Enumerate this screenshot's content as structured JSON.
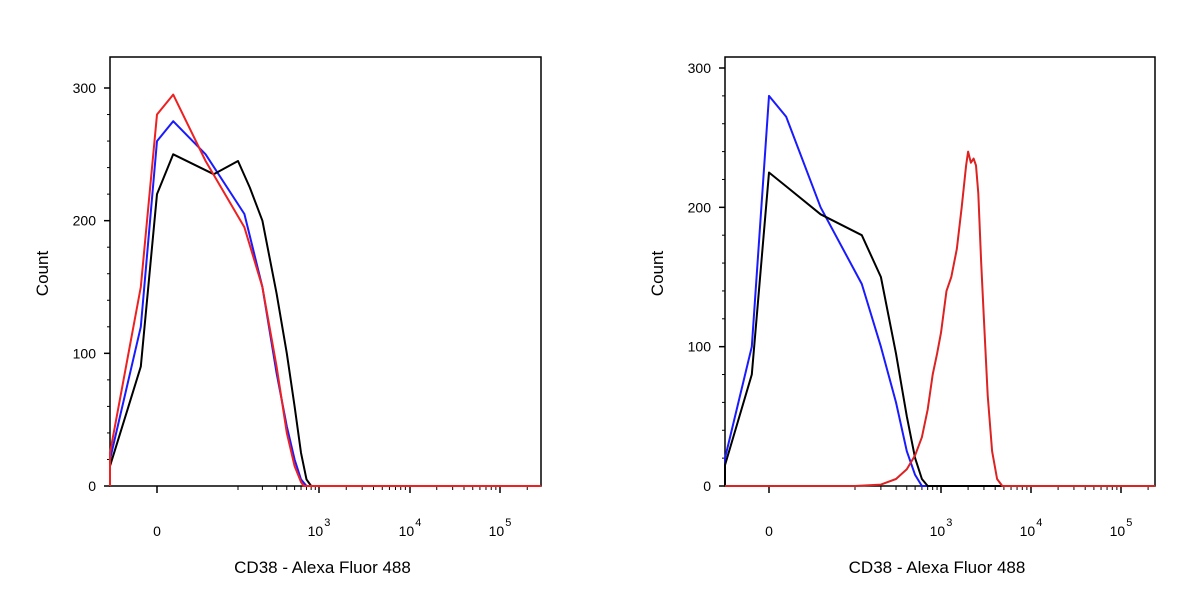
{
  "chart_data": [
    {
      "type": "line",
      "panel": "left",
      "xlabel": "CD38 - Alexa Fluor 488",
      "ylabel": "Count",
      "x_scale": "biexponential",
      "ylim": [
        0,
        300
      ],
      "y_ticks": [
        "0",
        "100",
        "200",
        "300"
      ],
      "x_ticks": [
        {
          "base": "0",
          "exp": ""
        },
        {
          "base": "10",
          "exp": "3"
        },
        {
          "base": "10",
          "exp": "4"
        },
        {
          "base": "10",
          "exp": "5"
        }
      ],
      "grid": false,
      "series": [
        {
          "color": "#1a1aff",
          "points": [
            [
              -400,
              0
            ],
            [
              -150,
              3
            ],
            [
              -60,
              20
            ],
            [
              -20,
              120
            ],
            [
              0,
              260
            ],
            [
              20,
              275
            ],
            [
              60,
              250
            ],
            [
              120,
              205
            ],
            [
              200,
              150
            ],
            [
              300,
              85
            ],
            [
              400,
              45
            ],
            [
              500,
              20
            ],
            [
              600,
              5
            ],
            [
              700,
              0
            ],
            [
              100000,
              0
            ],
            [
              300000,
              0
            ]
          ]
        },
        {
          "color": "#000000",
          "points": [
            [
              -400,
              0
            ],
            [
              -150,
              2
            ],
            [
              -60,
              15
            ],
            [
              -20,
              90
            ],
            [
              0,
              220
            ],
            [
              20,
              250
            ],
            [
              70,
              235
            ],
            [
              100,
              245
            ],
            [
              140,
              225
            ],
            [
              200,
              200
            ],
            [
              300,
              145
            ],
            [
              400,
              100
            ],
            [
              500,
              60
            ],
            [
              600,
              25
            ],
            [
              700,
              5
            ],
            [
              800,
              0
            ],
            [
              100000,
              0
            ],
            [
              300000,
              0
            ]
          ]
        },
        {
          "color": "#ee2020",
          "points": [
            [
              -400,
              0
            ],
            [
              -150,
              3
            ],
            [
              -60,
              25
            ],
            [
              -20,
              150
            ],
            [
              0,
              280
            ],
            [
              20,
              295
            ],
            [
              60,
              245
            ],
            [
              120,
              195
            ],
            [
              200,
              150
            ],
            [
              300,
              90
            ],
            [
              400,
              40
            ],
            [
              500,
              15
            ],
            [
              600,
              3
            ],
            [
              650,
              0
            ],
            [
              100000,
              0
            ],
            [
              300000,
              0
            ]
          ]
        }
      ]
    },
    {
      "type": "line",
      "panel": "right",
      "xlabel": "CD38 - Alexa Fluor 488",
      "ylabel": "Count",
      "x_scale": "biexponential",
      "ylim": [
        0,
        300
      ],
      "y_ticks": [
        "0",
        "100",
        "200",
        "300"
      ],
      "x_ticks": [
        {
          "base": "0",
          "exp": ""
        },
        {
          "base": "10",
          "exp": "3"
        },
        {
          "base": "10",
          "exp": "4"
        },
        {
          "base": "10",
          "exp": "5"
        }
      ],
      "grid": false,
      "series": [
        {
          "color": "#1a1aff",
          "points": [
            [
              -400,
              0
            ],
            [
              -150,
              3
            ],
            [
              -60,
              20
            ],
            [
              -20,
              100
            ],
            [
              0,
              280
            ],
            [
              20,
              265
            ],
            [
              60,
              200
            ],
            [
              120,
              145
            ],
            [
              200,
              100
            ],
            [
              300,
              60
            ],
            [
              400,
              25
            ],
            [
              500,
              8
            ],
            [
              600,
              0
            ],
            [
              100000,
              0
            ],
            [
              300000,
              0
            ]
          ]
        },
        {
          "color": "#000000",
          "points": [
            [
              -400,
              0
            ],
            [
              -150,
              2
            ],
            [
              -60,
              15
            ],
            [
              -20,
              80
            ],
            [
              0,
              225
            ],
            [
              20,
              215
            ],
            [
              60,
              195
            ],
            [
              120,
              180
            ],
            [
              200,
              150
            ],
            [
              300,
              95
            ],
            [
              400,
              50
            ],
            [
              500,
              20
            ],
            [
              600,
              5
            ],
            [
              700,
              0
            ],
            [
              100000,
              0
            ],
            [
              300000,
              0
            ]
          ]
        },
        {
          "color": "#dd2222",
          "points": [
            [
              -400,
              0
            ],
            [
              0,
              0
            ],
            [
              100,
              0
            ],
            [
              200,
              1
            ],
            [
              300,
              5
            ],
            [
              400,
              12
            ],
            [
              500,
              22
            ],
            [
              600,
              35
            ],
            [
              700,
              55
            ],
            [
              800,
              80
            ],
            [
              900,
              95
            ],
            [
              1000,
              110
            ],
            [
              1150,
              140
            ],
            [
              1300,
              150
            ],
            [
              1500,
              170
            ],
            [
              1700,
              200
            ],
            [
              1900,
              230
            ],
            [
              2000,
              240
            ],
            [
              2150,
              232
            ],
            [
              2300,
              235
            ],
            [
              2450,
              230
            ],
            [
              2600,
              210
            ],
            [
              2800,
              160
            ],
            [
              3000,
              120
            ],
            [
              3300,
              65
            ],
            [
              3700,
              25
            ],
            [
              4200,
              5
            ],
            [
              4800,
              0
            ],
            [
              100000,
              0
            ],
            [
              300000,
              0
            ]
          ]
        }
      ]
    }
  ]
}
